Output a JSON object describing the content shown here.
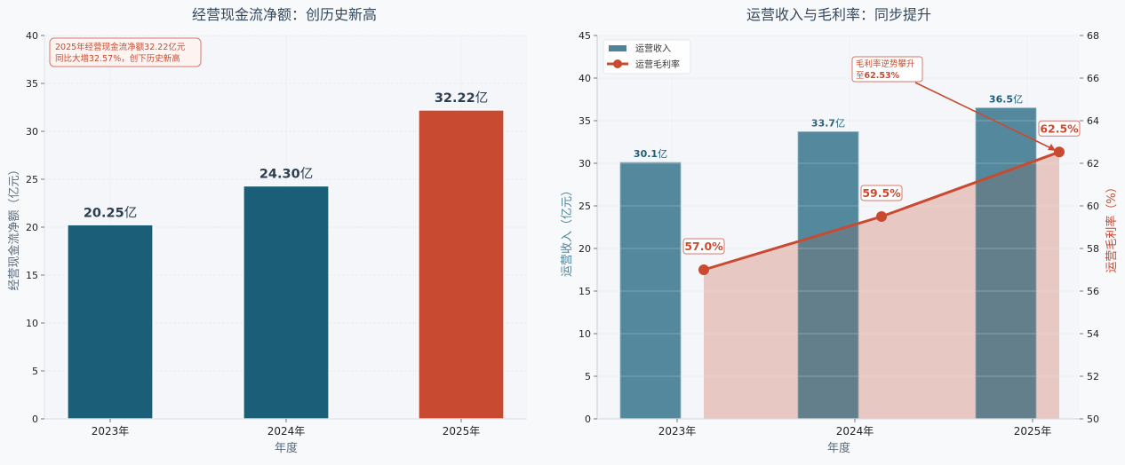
{
  "chart_data": [
    {
      "type": "bar",
      "title": "经营现金流净额：创历史新高",
      "xlabel": "年度",
      "ylabel": "经营现金流净额（亿元）",
      "ylim": [
        0,
        40
      ],
      "yticks": [
        0,
        5,
        10,
        15,
        20,
        25,
        30,
        35,
        40
      ],
      "categories": [
        "2023年",
        "2024年",
        "2025年"
      ],
      "values": [
        20.25,
        24.3,
        32.22
      ],
      "value_labels": [
        "20.25",
        "24.30",
        "32.22"
      ],
      "value_unit": "亿",
      "bar_colors": [
        "#1b5e78",
        "#1b5e78",
        "#c84b31"
      ],
      "grid": true,
      "annotation": {
        "line1": "2025年经营现金流净额32.22亿元",
        "line2": "同比大增32.57%，创下历史新高",
        "color": "#c84b31"
      }
    },
    {
      "type": "bar+line",
      "title": "运营收入与毛利率：同步提升",
      "xlabel": "年度",
      "categories": [
        "2023年",
        "2024年",
        "2025年"
      ],
      "series": [
        {
          "name": "运营收入",
          "axis": "left",
          "type": "bar",
          "values": [
            30.1,
            33.7,
            36.5
          ],
          "value_labels": [
            "30.1",
            "33.7",
            "36.5"
          ],
          "value_unit": "亿",
          "color": "#4e8499"
        },
        {
          "name": "运营毛利率",
          "axis": "right",
          "type": "line",
          "values": [
            57.0,
            59.5,
            62.53
          ],
          "value_labels": [
            "57.0%",
            "59.5%",
            "62.5%"
          ],
          "color": "#c84b31",
          "fill": true
        }
      ],
      "ylabel_left": "运营收入（亿元）",
      "ylabel_right": "运营毛利率（%）",
      "ylim_left": [
        0,
        45
      ],
      "ylim_right": [
        50,
        68
      ],
      "yticks_left": [
        0,
        5,
        10,
        15,
        20,
        25,
        30,
        35,
        40,
        45
      ],
      "yticks_right": [
        50,
        52,
        54,
        56,
        58,
        60,
        62,
        64,
        66,
        68
      ],
      "legend": {
        "position": "upper left",
        "entries": [
          "运营收入",
          "运营毛利率"
        ]
      },
      "grid": true,
      "annotation": {
        "line1": "毛利率逆势攀升",
        "line2_prefix": "至",
        "line2_value": "62.53%",
        "color": "#c84b31"
      }
    }
  ]
}
